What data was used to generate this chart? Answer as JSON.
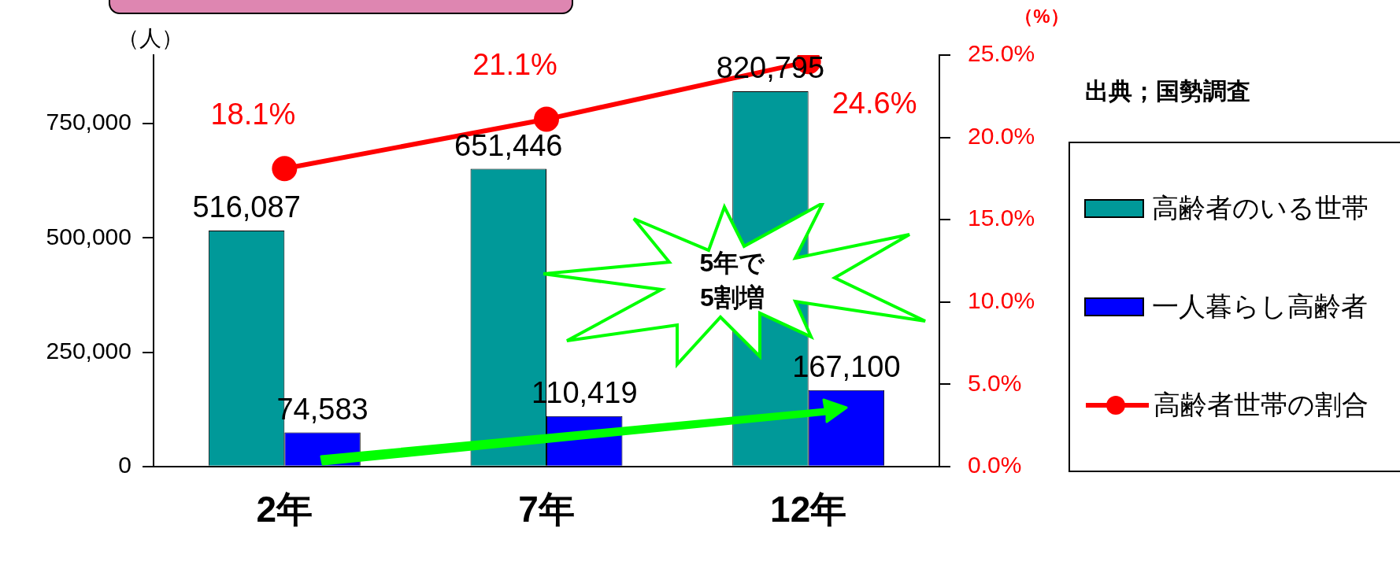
{
  "chart_data": {
    "type": "bar",
    "ylabel": "（人）",
    "y2label": "（%）",
    "categories": [
      "2年",
      "7年",
      "12年"
    ],
    "series": [
      {
        "name": "高齢者のいる世帯",
        "color": "#009999",
        "values": [
          516087,
          651446,
          820795
        ],
        "value_labels": [
          "516,087",
          "651,446",
          "820,795"
        ]
      },
      {
        "name": "一人暮らし高齢者",
        "color": "#0000ff",
        "values": [
          74583,
          110419,
          167100
        ],
        "value_labels": [
          "74,583",
          "110,419",
          "167,100"
        ]
      },
      {
        "name": "高齢者世帯の割合",
        "type": "line",
        "axis": "y2",
        "color": "#ff0000",
        "values": [
          18.1,
          21.1,
          24.6
        ],
        "value_labels": [
          "18.1%",
          "21.1%",
          "24.6%"
        ]
      }
    ],
    "ylim": [
      0,
      900000
    ],
    "yticks": [
      {
        "value": 0,
        "label": "0"
      },
      {
        "value": 250000,
        "label": "250,000"
      },
      {
        "value": 500000,
        "label": "500,000"
      },
      {
        "value": 750000,
        "label": "750,000"
      }
    ],
    "y2lim": [
      0,
      25
    ],
    "y2ticks": [
      {
        "value": 0,
        "label": "0.0%"
      },
      {
        "value": 5,
        "label": "5.0%"
      },
      {
        "value": 10,
        "label": "10.0%"
      },
      {
        "value": 15,
        "label": "15.0%"
      },
      {
        "value": 20,
        "label": "20.0%"
      },
      {
        "value": 25,
        "label": "25.0%"
      }
    ],
    "annotations": [
      "出典；国勢調査",
      "5年で\n5割増"
    ],
    "legend": "right",
    "grid": false,
    "marker": "circle",
    "line_style": "solid"
  }
}
